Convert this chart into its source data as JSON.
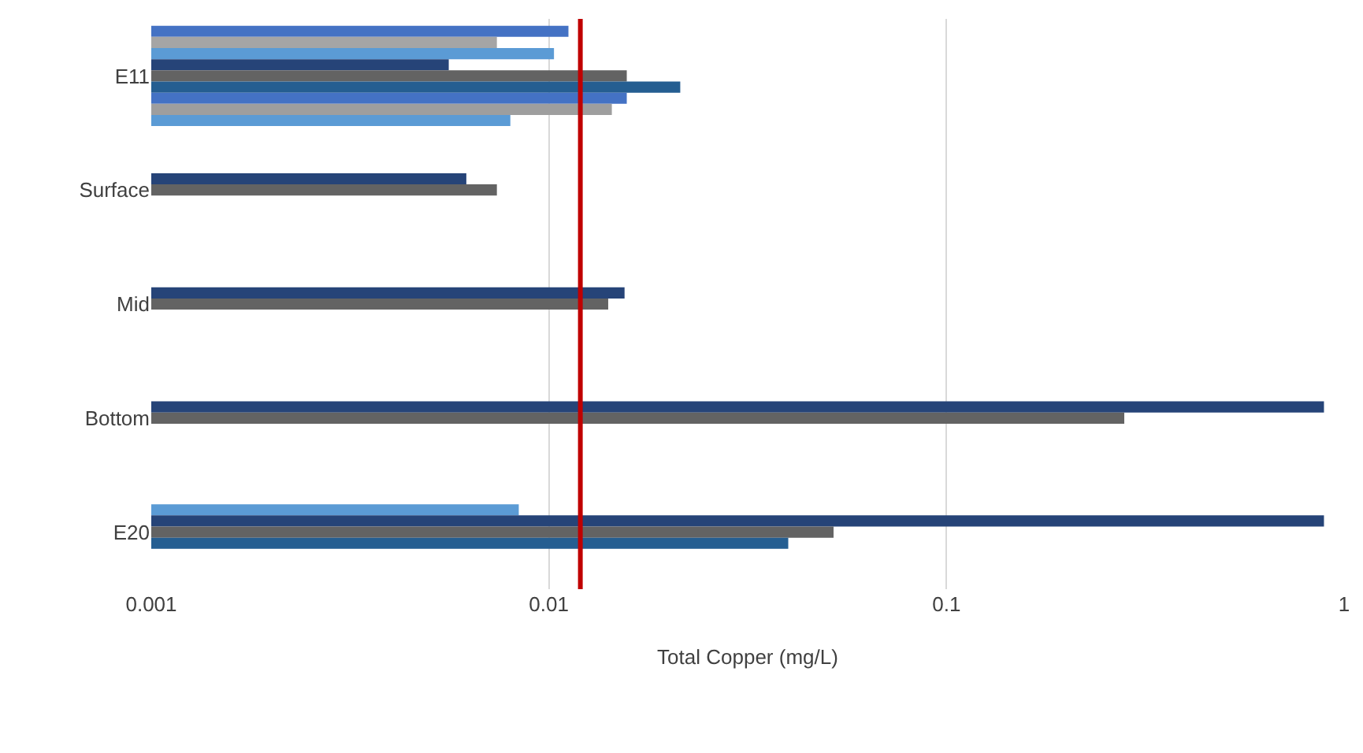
{
  "chart_data": {
    "type": "bar",
    "orientation": "horizontal",
    "xlabel": "Total Copper (mg/L)",
    "categories": [
      "E11",
      "Surface",
      "Mid",
      "Bottom",
      "E20"
    ],
    "series": [
      {
        "color": "#4472c4",
        "values": [
          0.0112,
          null,
          null,
          null,
          null
        ]
      },
      {
        "color": "#a5a5a5",
        "values": [
          0.0074,
          null,
          null,
          null,
          null
        ]
      },
      {
        "color": "#5b9bd5",
        "values": [
          0.0103,
          null,
          null,
          null,
          0.0084
        ]
      },
      {
        "color": "#264478",
        "values": [
          0.0056,
          0.0062,
          0.0155,
          0.89,
          0.89
        ]
      },
      {
        "color": "#636363",
        "values": [
          0.0157,
          0.0074,
          0.0141,
          0.28,
          0.052
        ]
      },
      {
        "color": "#255e91",
        "values": [
          0.0214,
          null,
          null,
          null,
          0.04
        ]
      },
      {
        "color": "#4472c4",
        "values": [
          0.0157,
          null,
          null,
          null,
          null
        ]
      },
      {
        "color": "#9e9e9e",
        "values": [
          0.0144,
          null,
          null,
          null,
          null
        ]
      },
      {
        "color": "#5b9bd5",
        "values": [
          0.008,
          null,
          null,
          null,
          null
        ]
      }
    ],
    "log": "x",
    "xlim": [
      0.001,
      1
    ],
    "xticks": [
      0.001,
      0.01,
      0.1,
      1
    ],
    "grid": "x",
    "ref_lines": [
      {
        "axis": "x",
        "value": 0.012,
        "color": "#c00000"
      }
    ]
  }
}
